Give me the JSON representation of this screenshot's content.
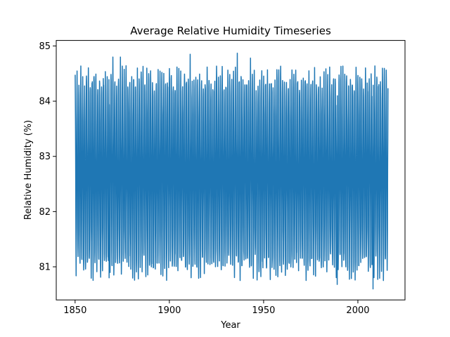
{
  "chart_data": {
    "type": "line",
    "title": "Average Relative Humidity Timeseries",
    "xlabel": "Year",
    "ylabel": "Relative Humidity (%)",
    "xlim": [
      1840,
      2025
    ],
    "ylim": [
      80.4,
      85.1
    ],
    "x_ticks": [
      1850,
      1900,
      1950,
      2000
    ],
    "y_ticks": [
      81,
      82,
      83,
      84,
      85
    ],
    "line_color": "#1f77b4",
    "grid": false,
    "legend": "none",
    "series": [
      {
        "x_start": "1850-01",
        "x_end": "2015-12",
        "frequency": "monthly",
        "seasonal_range": [
          81.0,
          84.4
        ],
        "min": 80.6,
        "max": 84.87,
        "extremes": [
          {
            "x": 1868,
            "y": 80.8
          },
          {
            "x": 1870,
            "y": 84.8
          },
          {
            "x": 1874,
            "y": 84.8
          },
          {
            "x": 1911,
            "y": 84.85
          },
          {
            "x": 1936,
            "y": 84.87
          },
          {
            "x": 1943,
            "y": 84.78
          },
          {
            "x": 1989,
            "y": 80.68
          },
          {
            "x": 2008,
            "y": 80.6
          }
        ]
      }
    ]
  }
}
